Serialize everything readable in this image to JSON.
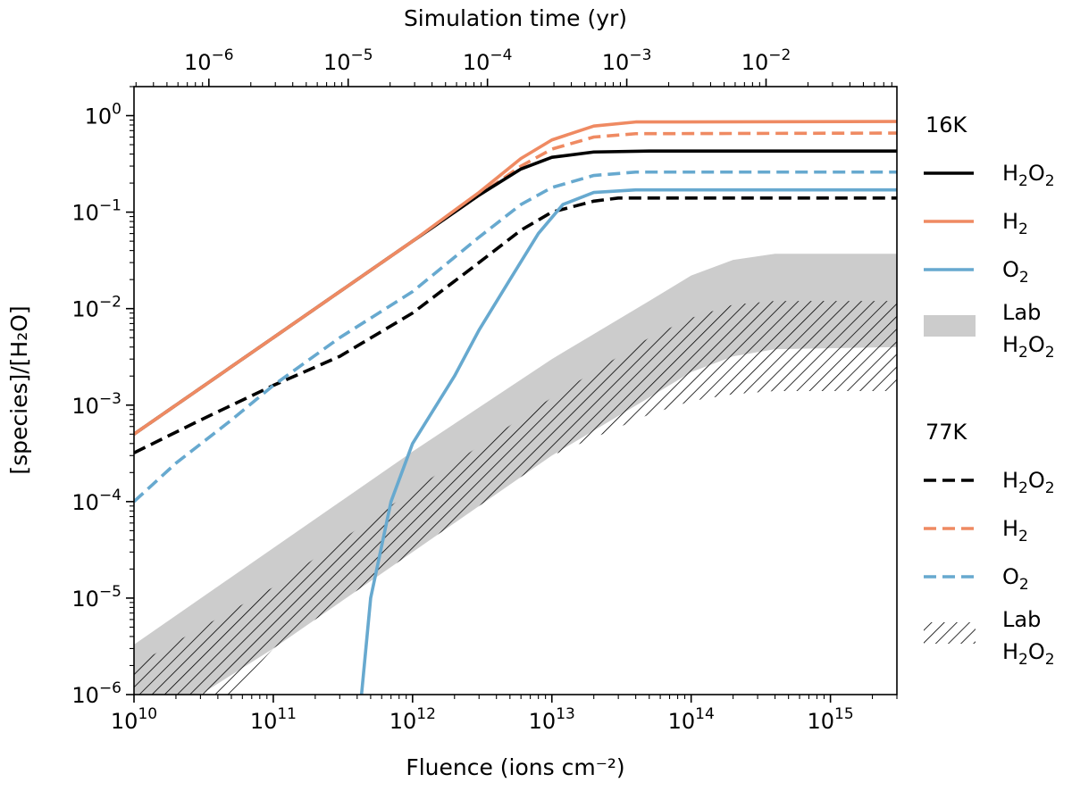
{
  "chart_data": {
    "type": "line",
    "xlabel": "Fluence (ions cm⁻²)",
    "ylabel": "[species]/[H₂O]",
    "top_xlabel": "Simulation time (yr)",
    "x_scale": "log",
    "y_scale": "log",
    "xlim": [
      10000000000.0,
      3000000000000000.0
    ],
    "ylim": [
      1e-06,
      2
    ],
    "top_xlim": [
      2.9e-07,
      0.087
    ],
    "x_ticks": [
      "10^10",
      "10^11",
      "10^12",
      "10^13",
      "10^14",
      "10^15"
    ],
    "y_ticks": [
      "10^-6",
      "10^-5",
      "10^-4",
      "10^-3",
      "10^-2",
      "10^-1",
      "10^0"
    ],
    "top_ticks": [
      "10^-6",
      "10^-5",
      "10^-4",
      "10^-3",
      "10^-2"
    ],
    "grid": false,
    "legend_placement": "outside right",
    "colors": {
      "H2O2": "#000000",
      "H2": "#ef8a62",
      "O2": "#67a9cf",
      "lab_band": "#cccccc"
    },
    "legend": {
      "16K": {
        "title": "16K",
        "entries": [
          {
            "key": "H2O2_16K",
            "base": "H",
            "sub1": "2",
            "mid": "O",
            "sub2": "2",
            "style": "solid"
          },
          {
            "key": "H2_16K",
            "base": "H",
            "sub1": "2",
            "style": "solid"
          },
          {
            "key": "O2_16K",
            "base": "O",
            "sub1": "2",
            "style": "solid"
          },
          {
            "key": "lab_16K",
            "line1": "Lab",
            "base": "H",
            "sub1": "2",
            "mid": "O",
            "sub2": "2",
            "style": "gray band"
          }
        ]
      },
      "77K": {
        "title": "77K",
        "entries": [
          {
            "key": "H2O2_77K",
            "base": "H",
            "sub1": "2",
            "mid": "O",
            "sub2": "2",
            "style": "dashed"
          },
          {
            "key": "H2_77K",
            "base": "H",
            "sub1": "2",
            "style": "dashed"
          },
          {
            "key": "O2_77K",
            "base": "O",
            "sub1": "2",
            "style": "dashed"
          },
          {
            "key": "lab_77K",
            "line1": "Lab",
            "base": "H",
            "sub1": "2",
            "mid": "O",
            "sub2": "2",
            "style": "hatched band"
          }
        ]
      }
    },
    "series": [
      {
        "key": "H2O2_16K",
        "temperature": "16K",
        "species": "H2O2",
        "color": "#000000",
        "dash": "solid",
        "points": [
          [
            10000000000.0,
            0.0005
          ],
          [
            100000000000.0,
            0.005
          ],
          [
            1000000000000.0,
            0.05
          ],
          [
            3000000000000.0,
            0.15
          ],
          [
            6000000000000.0,
            0.28
          ],
          [
            10000000000000.0,
            0.37
          ],
          [
            20000000000000.0,
            0.42
          ],
          [
            50000000000000.0,
            0.43
          ],
          [
            3000000000000000.0,
            0.43
          ]
        ]
      },
      {
        "key": "H2_16K",
        "temperature": "16K",
        "species": "H2",
        "color": "#ef8a62",
        "dash": "solid",
        "points": [
          [
            10000000000.0,
            0.0005
          ],
          [
            100000000000.0,
            0.005
          ],
          [
            1000000000000.0,
            0.05
          ],
          [
            3000000000000.0,
            0.16
          ],
          [
            6000000000000.0,
            0.36
          ],
          [
            10000000000000.0,
            0.56
          ],
          [
            20000000000000.0,
            0.78
          ],
          [
            40000000000000.0,
            0.86
          ],
          [
            3000000000000000.0,
            0.87
          ]
        ]
      },
      {
        "key": "O2_16K",
        "temperature": "16K",
        "species": "O2",
        "color": "#67a9cf",
        "dash": "solid",
        "points": [
          [
            430000000000.0,
            1e-06
          ],
          [
            500000000000.0,
            1e-05
          ],
          [
            700000000000.0,
            0.0001
          ],
          [
            1000000000000.0,
            0.0004
          ],
          [
            2000000000000.0,
            0.002
          ],
          [
            3000000000000.0,
            0.006
          ],
          [
            5000000000000.0,
            0.02
          ],
          [
            8000000000000.0,
            0.06
          ],
          [
            12000000000000.0,
            0.12
          ],
          [
            20000000000000.0,
            0.16
          ],
          [
            40000000000000.0,
            0.17
          ],
          [
            3000000000000000.0,
            0.17
          ]
        ]
      },
      {
        "key": "H2O2_77K",
        "temperature": "77K",
        "species": "H2O2",
        "color": "#000000",
        "dash": "dashed",
        "points": [
          [
            10000000000.0,
            0.00032
          ],
          [
            30000000000.0,
            0.0007
          ],
          [
            100000000000.0,
            0.0016
          ],
          [
            300000000000.0,
            0.0032
          ],
          [
            1000000000000.0,
            0.009
          ],
          [
            3000000000000.0,
            0.03
          ],
          [
            6000000000000.0,
            0.065
          ],
          [
            10000000000000.0,
            0.1
          ],
          [
            20000000000000.0,
            0.13
          ],
          [
            30000000000000.0,
            0.14
          ],
          [
            3000000000000000.0,
            0.14
          ]
        ]
      },
      {
        "key": "H2_77K",
        "temperature": "77K",
        "species": "H2",
        "color": "#ef8a62",
        "dash": "dashed",
        "points": [
          [
            10000000000.0,
            0.0005
          ],
          [
            100000000000.0,
            0.005
          ],
          [
            1000000000000.0,
            0.05
          ],
          [
            3000000000000.0,
            0.15
          ],
          [
            6000000000000.0,
            0.3
          ],
          [
            10000000000000.0,
            0.45
          ],
          [
            20000000000000.0,
            0.6
          ],
          [
            40000000000000.0,
            0.65
          ],
          [
            3000000000000000.0,
            0.66
          ]
        ]
      },
      {
        "key": "O2_77K",
        "temperature": "77K",
        "species": "O2",
        "color": "#67a9cf",
        "dash": "dashed",
        "points": [
          [
            10000000000.0,
            0.0001
          ],
          [
            20000000000.0,
            0.00025
          ],
          [
            50000000000.0,
            0.0007
          ],
          [
            100000000000.0,
            0.0016
          ],
          [
            300000000000.0,
            0.005
          ],
          [
            1000000000000.0,
            0.015
          ],
          [
            3000000000000.0,
            0.055
          ],
          [
            6000000000000.0,
            0.12
          ],
          [
            10000000000000.0,
            0.18
          ],
          [
            20000000000000.0,
            0.24
          ],
          [
            40000000000000.0,
            0.26
          ],
          [
            3000000000000000.0,
            0.26
          ]
        ]
      },
      {
        "key": "lab_16K",
        "temperature": "16K",
        "species": "Lab H2O2",
        "type": "band",
        "fill": "#cccccc",
        "upper": [
          [
            10000000000.0,
            3.3e-06
          ],
          [
            100000000000.0,
            3.3e-05
          ],
          [
            1000000000000.0,
            0.00033
          ],
          [
            10000000000000.0,
            0.003
          ],
          [
            50000000000000.0,
            0.012
          ],
          [
            100000000000000.0,
            0.022
          ],
          [
            200000000000000.0,
            0.032
          ],
          [
            400000000000000.0,
            0.037
          ],
          [
            3000000000000000.0,
            0.037
          ]
        ],
        "lower": [
          [
            10000000000.0,
            1e-06
          ],
          [
            30000000000.0,
            1e-06
          ],
          [
            100000000000.0,
            3e-06
          ],
          [
            1000000000000.0,
            3e-05
          ],
          [
            10000000000000.0,
            0.0003
          ],
          [
            50000000000000.0,
            0.0012
          ],
          [
            100000000000000.0,
            0.0022
          ],
          [
            200000000000000.0,
            0.0032
          ],
          [
            400000000000000.0,
            0.0038
          ],
          [
            3000000000000000.0,
            0.004
          ]
        ]
      },
      {
        "key": "lab_77K",
        "temperature": "77K",
        "species": "Lab H2O2",
        "type": "hatched band",
        "upper": [
          [
            10000000000.0,
            2e-06
          ],
          [
            100000000000.0,
            1.3e-05
          ],
          [
            1000000000000.0,
            0.00013
          ],
          [
            10000000000000.0,
            0.0012
          ],
          [
            50000000000000.0,
            0.005
          ],
          [
            100000000000000.0,
            0.008
          ],
          [
            200000000000000.0,
            0.011
          ],
          [
            400000000000000.0,
            0.012
          ],
          [
            3000000000000000.0,
            0.012
          ]
        ],
        "lower": [
          [
            10000000000.0,
            1e-06
          ],
          [
            30000000000.0,
            1e-06
          ],
          [
            50000000000.0,
            1e-06
          ],
          [
            100000000000.0,
            3e-06
          ],
          [
            1000000000000.0,
            3e-05
          ],
          [
            10000000000000.0,
            0.0003
          ],
          [
            50000000000000.0,
            0.0008
          ],
          [
            100000000000000.0,
            0.0011
          ],
          [
            200000000000000.0,
            0.0013
          ],
          [
            400000000000000.0,
            0.0014
          ],
          [
            3000000000000000.0,
            0.0014
          ]
        ]
      }
    ]
  }
}
